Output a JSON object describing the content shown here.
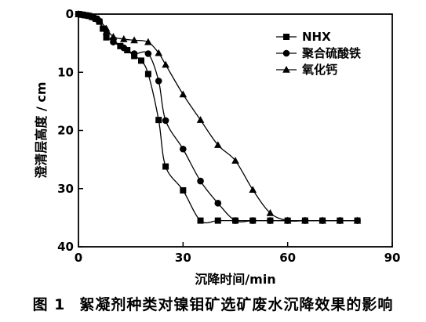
{
  "caption": {
    "figure": "图 1",
    "text": "絮凝剂种类对镍钼矿选矿废水沉降效果的影响"
  },
  "chart_data": {
    "type": "line",
    "title": "",
    "xlabel": "沉降时间/min",
    "ylabel": "澄清层高度 / cm",
    "xlim": [
      0,
      90
    ],
    "ylim": [
      0,
      40
    ],
    "y_inverted": true,
    "xticks": [
      0,
      30,
      60,
      90
    ],
    "yticks": [
      0,
      10,
      20,
      30,
      40
    ],
    "grid": false,
    "legend_position": "top-right",
    "series": [
      {
        "name": "NHX",
        "marker": "square",
        "x": [
          0,
          1,
          2,
          3,
          4,
          5,
          6,
          7,
          8,
          10,
          12,
          14,
          16,
          18,
          20,
          23,
          25,
          30,
          35,
          40,
          45,
          50,
          55,
          60,
          65,
          70,
          75,
          80
        ],
        "y": [
          0,
          0.1,
          0.2,
          0.3,
          0.5,
          0.8,
          1.3,
          2.5,
          4,
          4.5,
          5.5,
          6.2,
          7.2,
          8,
          10.3,
          18.2,
          26.2,
          30.3,
          35.5,
          35.5,
          35.5,
          35.5,
          35.5,
          35.5,
          35.5,
          35.5,
          35.5,
          35.5
        ]
      },
      {
        "name": "聚合硫酸铁",
        "marker": "circle",
        "x": [
          0,
          1,
          2,
          3,
          4,
          5,
          6,
          8,
          10,
          13,
          16,
          20,
          23,
          25,
          30,
          35,
          40,
          45,
          50,
          55,
          60,
          65,
          70,
          75,
          80
        ],
        "y": [
          0,
          0.1,
          0.2,
          0.3,
          0.5,
          0.8,
          1.2,
          3.5,
          4.8,
          5.8,
          6.8,
          6.8,
          11.5,
          18.3,
          23.2,
          28.7,
          32.5,
          35.5,
          35.5,
          35.5,
          35.5,
          35.5,
          35.5,
          35.5,
          35.5
        ]
      },
      {
        "name": "氧化钙",
        "marker": "triangle",
        "x": [
          0,
          1,
          2,
          3,
          4,
          5,
          6,
          8,
          10,
          13,
          16,
          20,
          23,
          25,
          30,
          35,
          40,
          45,
          50,
          55,
          60,
          65,
          70,
          75,
          80
        ],
        "y": [
          0,
          0.1,
          0.2,
          0.3,
          0.5,
          0.7,
          1.0,
          2.5,
          3.9,
          4.3,
          4.5,
          4.8,
          6.7,
          8.7,
          13.8,
          18.2,
          22.5,
          25.2,
          30.2,
          34.2,
          35.5,
          35.5,
          35.5,
          35.5,
          35.5
        ]
      }
    ]
  }
}
